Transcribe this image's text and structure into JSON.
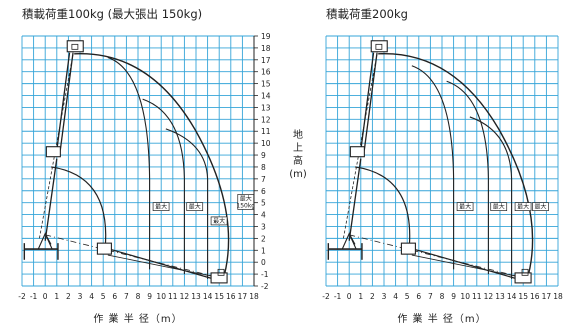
{
  "panels": [
    {
      "title": "積載荷重100kg (最大張出 150kg)",
      "xlabel": "作 業 半 径（m）",
      "ylabel_chars": [
        "地",
        "上",
        "高",
        "(m)"
      ],
      "region_labels": [
        "最大",
        "最大",
        "最大",
        "最大\n150kg"
      ]
    },
    {
      "title": "積載荷重200kg",
      "xlabel": "作 業 半 径（m）",
      "ylabel_chars": [],
      "region_labels": [
        "最大",
        "最大",
        "最大",
        "最大"
      ]
    }
  ],
  "chart_data": [
    {
      "type": "diagram",
      "title": "積載荷重100kg (最大張出 150kg)",
      "xlabel": "作業半径(m)",
      "ylabel": "地上高(m)",
      "xlim": [
        -2,
        18
      ],
      "ylim": [
        -2,
        19
      ],
      "x_ticks": [
        -2,
        -1,
        0,
        1,
        2,
        3,
        4,
        5,
        6,
        7,
        8,
        9,
        10,
        11,
        12,
        13,
        14,
        15,
        16,
        17,
        18
      ],
      "y_ticks": [
        -2,
        -1,
        0,
        1,
        2,
        3,
        4,
        5,
        6,
        7,
        8,
        9,
        10,
        11,
        12,
        13,
        14,
        15,
        16,
        17,
        18,
        19
      ]
    },
    {
      "type": "diagram",
      "title": "積載荷重200kg",
      "xlabel": "作業半径(m)",
      "xlim": [
        -2,
        18
      ],
      "ylim": [
        -2,
        19
      ],
      "x_ticks": [
        -2,
        -1,
        0,
        1,
        2,
        3,
        4,
        5,
        6,
        7,
        8,
        9,
        10,
        11,
        12,
        13,
        14,
        15,
        16,
        17,
        18
      ]
    }
  ],
  "colors": {
    "grid": "#35a4d8",
    "ink": "#222222"
  }
}
